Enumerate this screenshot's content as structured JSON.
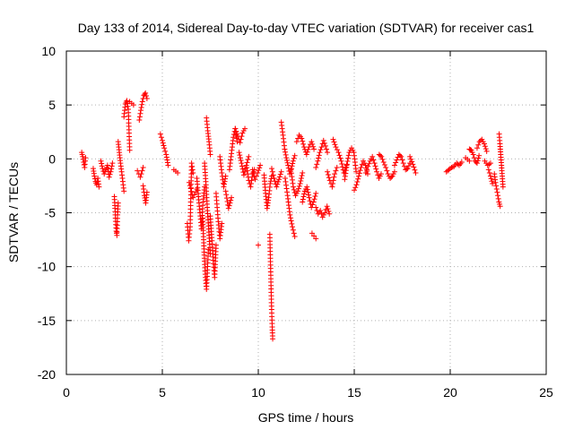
{
  "chart_data": {
    "type": "scatter",
    "title": "Day 133 of 2014, Sidereal Day-to-day VTEC variation (SDTVAR) for receiver cas1",
    "xlabel": "GPS time / hours",
    "ylabel": "SDTVAR / TECUs",
    "xlim": [
      0,
      25
    ],
    "ylim": [
      -20,
      10
    ],
    "xticks": [
      0,
      5,
      10,
      15,
      20,
      25
    ],
    "yticks": [
      -20,
      -15,
      -10,
      -5,
      0,
      5,
      10
    ],
    "grid": true,
    "marker": "+",
    "marker_color": "#ff0000",
    "series": [
      {
        "name": "SDTVAR",
        "segments": [
          {
            "x0": 0.8,
            "x1": 1.0,
            "pts": [
              0.6,
              0.2,
              -0.3,
              -0.8,
              0.1
            ]
          },
          {
            "x0": 1.4,
            "x1": 1.7,
            "pts": [
              -0.9,
              -1.6,
              -2.1,
              -2.4,
              -1.8,
              -2.6
            ]
          },
          {
            "x0": 1.8,
            "x1": 2.4,
            "pts": [
              -0.2,
              -0.9,
              -1.4,
              -1.0,
              -0.6,
              -1.7,
              -1.2,
              -0.4
            ]
          },
          {
            "x0": 2.5,
            "x1": 2.7,
            "pts": [
              -3.5,
              -4.6,
              -5.8,
              -6.7,
              -7.1,
              -5.2,
              -4.1
            ]
          },
          {
            "x0": 2.7,
            "x1": 3.0,
            "pts": [
              1.6,
              0.6,
              -0.4,
              -1.2,
              -2.1,
              -3.0
            ]
          },
          {
            "x0": 3.0,
            "x1": 3.3,
            "pts": [
              3.9,
              5.1,
              5.4,
              4.6,
              0.8
            ]
          },
          {
            "x0": 3.3,
            "x1": 3.5,
            "pts": [
              5.3,
              5.0
            ]
          },
          {
            "x0": 3.7,
            "x1": 4.0,
            "pts": [
              -1.1,
              -1.7,
              -0.8
            ]
          },
          {
            "x0": 3.8,
            "x1": 4.2,
            "pts": [
              3.6,
              4.5,
              5.3,
              5.9,
              6.1,
              5.6
            ]
          },
          {
            "x0": 4.0,
            "x1": 4.2,
            "pts": [
              -2.5,
              -3.4,
              -4.1,
              -3.1
            ]
          },
          {
            "x0": 4.9,
            "x1": 5.3,
            "pts": [
              2.3,
              1.7,
              1.0,
              0.4,
              -0.6
            ]
          },
          {
            "x0": 5.6,
            "x1": 5.8,
            "pts": [
              -1.0,
              -1.3
            ]
          },
          {
            "x0": 6.3,
            "x1": 6.6,
            "pts": [
              -6.0,
              -7.6,
              -6.3,
              -0.4,
              -1.3
            ]
          },
          {
            "x0": 6.4,
            "x1": 6.8,
            "pts": [
              -2.2,
              -3.6,
              -2.8
            ]
          },
          {
            "x0": 6.8,
            "x1": 7.2,
            "pts": [
              -1.8,
              -3.5,
              -5.0,
              -6.5,
              -4.0,
              -2.6
            ]
          },
          {
            "x0": 7.1,
            "x1": 7.4,
            "pts": [
              -5.5,
              -7.5,
              -9.5,
              -11.0,
              -12.1,
              -10.3,
              -8.4
            ]
          },
          {
            "x0": 7.2,
            "x1": 7.5,
            "pts": [
              -0.4,
              -2.4,
              -4.8,
              -6.8,
              -8.8
            ]
          },
          {
            "x0": 7.3,
            "x1": 7.5,
            "pts": [
              3.8,
              2.6,
              1.6,
              0.4
            ]
          },
          {
            "x0": 7.5,
            "x1": 7.8,
            "pts": [
              -5.3,
              -7.3,
              -9.4,
              -11.0,
              -8.0
            ]
          },
          {
            "x0": 7.8,
            "x1": 8.1,
            "pts": [
              -3.2,
              -5.5,
              -7.4,
              -6.0
            ]
          },
          {
            "x0": 8.0,
            "x1": 8.3,
            "pts": [
              0.2,
              -1.3,
              -2.6,
              -1.6
            ]
          },
          {
            "x0": 8.3,
            "x1": 8.6,
            "pts": [
              -3.0,
              -4.6,
              -3.6
            ]
          },
          {
            "x0": 8.5,
            "x1": 8.9,
            "pts": [
              -1.0,
              0.5,
              2.0,
              2.8,
              1.6
            ]
          },
          {
            "x0": 8.8,
            "x1": 9.3,
            "pts": [
              2.8,
              2.1,
              1.5,
              2.4,
              2.8
            ]
          },
          {
            "x0": 9.0,
            "x1": 9.5,
            "pts": [
              0.6,
              -0.4,
              -1.5,
              -0.6,
              0.2
            ]
          },
          {
            "x0": 9.4,
            "x1": 9.8,
            "pts": [
              -0.8,
              -2.0,
              -2.6,
              -1.4,
              -1.0
            ]
          },
          {
            "x0": 9.7,
            "x1": 10.1,
            "pts": [
              -1.0,
              -1.9,
              -1.3,
              -0.6
            ]
          },
          {
            "x0": 10.0,
            "x1": 10.0,
            "pts": [
              -8.0
            ]
          },
          {
            "x0": 10.3,
            "x1": 10.7,
            "pts": [
              -1.5,
              -3.2,
              -4.6,
              -3.6,
              -2.3,
              -1.6
            ]
          },
          {
            "x0": 10.6,
            "x1": 10.75,
            "pts": [
              -7.0,
              -8.9,
              -10.8,
              -12.7,
              -14.3,
              -15.6,
              -16.7
            ]
          },
          {
            "x0": 10.7,
            "x1": 11.2,
            "pts": [
              -0.9,
              -1.8,
              -2.6,
              -1.9,
              -1.2
            ]
          },
          {
            "x0": 11.2,
            "x1": 11.9,
            "pts": [
              3.4,
              2.2,
              0.9,
              0.1,
              -0.6,
              -1.4,
              -0.9,
              -0.2,
              0.3
            ]
          },
          {
            "x0": 11.4,
            "x1": 11.9,
            "pts": [
              -1.8,
              -3.4,
              -5.2,
              -6.3,
              -7.2
            ]
          },
          {
            "x0": 11.7,
            "x1": 12.3,
            "pts": [
              -1.0,
              -2.6,
              -3.4,
              -3.0,
              -2.3,
              -1.3
            ]
          },
          {
            "x0": 12.0,
            "x1": 12.9,
            "pts": [
              1.6,
              2.2,
              1.9,
              1.1,
              0.4,
              1.1,
              1.6,
              0.9
            ]
          },
          {
            "x0": 12.3,
            "x1": 13.0,
            "pts": [
              -4.0,
              -3.0,
              -2.6,
              -3.6,
              -4.5,
              -4.0,
              -3.2
            ]
          },
          {
            "x0": 12.8,
            "x1": 13.0,
            "pts": [
              -6.9,
              -7.4
            ]
          },
          {
            "x0": 13.0,
            "x1": 13.7,
            "pts": [
              -4.5,
              -5.1,
              -4.8,
              -5.4,
              -5.0,
              -4.4,
              -5.1
            ]
          },
          {
            "x0": 13.0,
            "x1": 13.6,
            "pts": [
              -0.8,
              -0.2,
              0.6,
              1.1,
              1.7,
              1.2,
              0.6
            ]
          },
          {
            "x0": 13.6,
            "x1": 14.1,
            "pts": [
              -1.2,
              -2.0,
              -2.6,
              -1.4,
              -0.8
            ]
          },
          {
            "x0": 13.9,
            "x1": 14.6,
            "pts": [
              1.8,
              1.1,
              0.6,
              -0.2,
              -1.3,
              -0.6
            ]
          },
          {
            "x0": 14.5,
            "x1": 15.1,
            "pts": [
              -1.9,
              -0.5,
              0.6,
              1.0,
              0.6,
              -1.2
            ]
          },
          {
            "x0": 15.0,
            "x1": 15.7,
            "pts": [
              -2.9,
              -2.4,
              -1.6,
              -0.8,
              -0.2,
              -0.6,
              -1.4
            ]
          },
          {
            "x0": 15.6,
            "x1": 16.4,
            "pts": [
              -1.3,
              -0.7,
              -0.2,
              0.2,
              -0.4,
              -1.2,
              -1.8,
              -1.4
            ]
          },
          {
            "x0": 16.3,
            "x1": 17.1,
            "pts": [
              0.4,
              0.2,
              -0.3,
              -0.8,
              -1.4,
              -1.8,
              -1.6,
              -1.2
            ]
          },
          {
            "x0": 17.1,
            "x1": 17.9,
            "pts": [
              -0.6,
              -0.1,
              0.4,
              0.2,
              -0.4,
              -1.0,
              -0.9,
              -0.4
            ]
          },
          {
            "x0": 17.9,
            "x1": 18.2,
            "pts": [
              0.2,
              -0.5,
              -1.3
            ]
          },
          {
            "x0": 19.8,
            "x1": 20.6,
            "pts": [
              -1.2,
              -1.0,
              -0.8,
              -0.7,
              -0.4,
              -0.6,
              -0.3
            ]
          },
          {
            "x0": 20.8,
            "x1": 21.0,
            "pts": [
              0.1,
              -0.2
            ]
          },
          {
            "x0": 21.0,
            "x1": 21.5,
            "pts": [
              0.9,
              0.8,
              0.4,
              -0.2,
              -0.4,
              0.3
            ]
          },
          {
            "x0": 21.4,
            "x1": 21.9,
            "pts": [
              1.0,
              1.6,
              1.8,
              1.4,
              0.7
            ]
          },
          {
            "x0": 21.8,
            "x1": 22.1,
            "pts": [
              -0.2,
              -0.6,
              -0.4
            ]
          },
          {
            "x0": 22.0,
            "x1": 22.2,
            "pts": [
              -1.0,
              -1.6,
              -2.3
            ]
          },
          {
            "x0": 22.3,
            "x1": 22.6,
            "pts": [
              -1.4,
              -2.2,
              -2.8,
              -3.4,
              -4.0,
              -4.4
            ]
          },
          {
            "x0": 22.55,
            "x1": 22.75,
            "pts": [
              2.3,
              1.4,
              0.4,
              -0.6,
              -1.6,
              -2.6
            ]
          }
        ]
      }
    ]
  }
}
